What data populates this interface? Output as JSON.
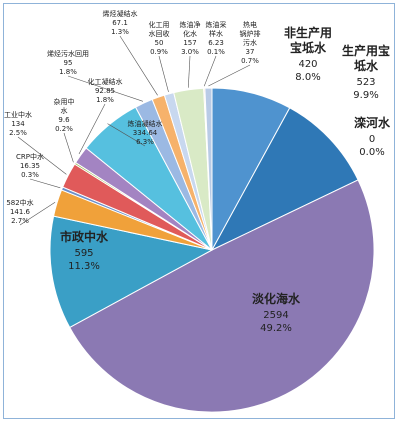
{
  "chart_data": {
    "type": "pie",
    "title": "",
    "slices": [
      {
        "name": "非生产用宝坻水",
        "value": 420,
        "percent": "8.0%",
        "color": "#4f93cf"
      },
      {
        "name": "生产用宝坻水",
        "value": 523,
        "percent": "9.9%",
        "color": "#2f78b6"
      },
      {
        "name": "滦河水",
        "value": 0,
        "percent": "0.0%",
        "color": "#3b6ea5"
      },
      {
        "name": "淡化海水",
        "value": 2594,
        "percent": "49.2%",
        "color": "#8b79b3"
      },
      {
        "name": "市政中水",
        "value": 595,
        "percent": "11.3%",
        "color": "#3a9fc6"
      },
      {
        "name": "582中水",
        "value": 141.6,
        "percent": "2.7%",
        "color": "#f0a13a"
      },
      {
        "name": "CRP中水",
        "value": 16.35,
        "percent": "0.3%",
        "color": "#6c8fc9"
      },
      {
        "name": "工业中水",
        "value": 134,
        "percent": "2.5%",
        "color": "#e05a5a"
      },
      {
        "name": "杂用中水",
        "value": 9.6,
        "percent": "0.2%",
        "color": "#9dbb5a"
      },
      {
        "name": "化工凝结水",
        "value": 92.85,
        "percent": "1.8%",
        "color": "#a384c2"
      },
      {
        "name": "炼油凝结水",
        "value": 334.64,
        "percent": "6.3%",
        "color": "#56c0df"
      },
      {
        "name": "烯烃污水回用",
        "value": 95,
        "percent": "1.8%",
        "color": "#9bb9e3"
      },
      {
        "name": "烯烃凝结水",
        "value": 67.1,
        "percent": "1.3%",
        "color": "#f6b26b"
      },
      {
        "name": "化工用水回收",
        "value": 50,
        "percent": "0.9%",
        "color": "#c8d8ef"
      },
      {
        "name": "炼油净化水",
        "value": 157,
        "percent": "3.0%",
        "color": "#d9eac6"
      },
      {
        "name": "炼油采样水",
        "value": 6.23,
        "percent": "0.1%",
        "color": "#f3c9a0"
      },
      {
        "name": "热电锅炉排污水",
        "value": 37,
        "percent": "0.7%",
        "color": "#b9cbe6"
      }
    ]
  }
}
